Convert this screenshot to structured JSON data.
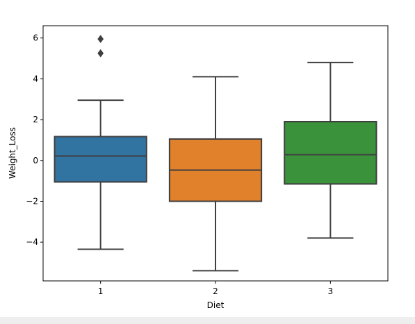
{
  "chart_data": {
    "type": "box",
    "title": "",
    "xlabel": "Diet",
    "ylabel": "Weight_Loss",
    "categories": [
      "1",
      "2",
      "3"
    ],
    "ylim": [
      -5.9,
      6.6
    ],
    "y_ticks": [
      -4,
      -2,
      0,
      2,
      4,
      6
    ],
    "y_tick_labels": [
      "−4",
      "−2",
      "0",
      "2",
      "4",
      "6"
    ],
    "grid": false,
    "boxes": [
      {
        "category": "1",
        "whisker_low": -4.35,
        "q1": -1.05,
        "median": 0.22,
        "q3": 1.17,
        "whisker_high": 2.95,
        "outliers": [
          5.25,
          5.95
        ],
        "color": "#3274a1"
      },
      {
        "category": "2",
        "whisker_low": -5.4,
        "q1": -2.0,
        "median": -0.47,
        "q3": 1.05,
        "whisker_high": 4.1,
        "outliers": [],
        "color": "#e1812c"
      },
      {
        "category": "3",
        "whisker_low": -3.8,
        "q1": -1.15,
        "median": 0.28,
        "q3": 1.9,
        "whisker_high": 4.8,
        "outliers": [],
        "color": "#3a923a"
      }
    ],
    "line_color": "#3f3f3f"
  }
}
